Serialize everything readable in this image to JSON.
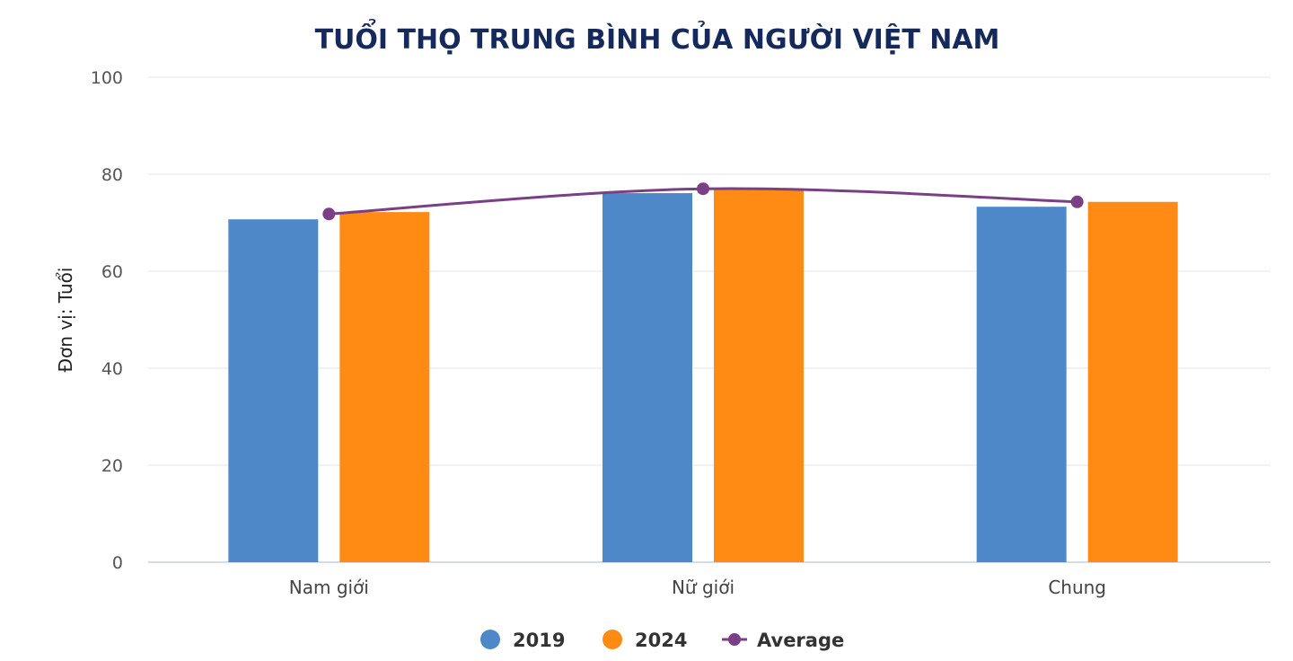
{
  "chart_data": {
    "type": "bar",
    "title": "TUỔI THỌ TRUNG BÌNH CỦA NGƯỜI VIỆT NAM",
    "ylabel": "Đơn vị: Tuổi",
    "xlabel": "",
    "categories": [
      "Nam giới",
      "Nữ giới",
      "Chung"
    ],
    "series": [
      {
        "name": "2019",
        "type": "bar",
        "color": "#4f88c9",
        "values": [
          70.7,
          76.1,
          73.3
        ]
      },
      {
        "name": "2024",
        "type": "bar",
        "color": "#ff8a14",
        "values": [
          72.2,
          77.0,
          74.3
        ]
      },
      {
        "name": "Average",
        "type": "line",
        "color": "#7b3f86",
        "values": [
          71.8,
          77.0,
          74.3
        ]
      }
    ],
    "ylim": [
      0,
      100
    ],
    "yticks": [
      0,
      20,
      40,
      60,
      80,
      100
    ],
    "grid": true,
    "legend_position": "bottom-center"
  }
}
